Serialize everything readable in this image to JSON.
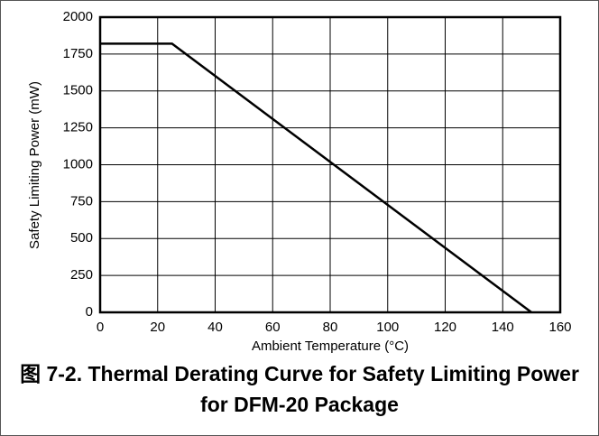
{
  "chart_data": {
    "type": "line",
    "title": "图 7-2. Thermal Derating Curve for Safety Limiting Power for DFM-20 Package",
    "xlabel": "Ambient Temperature (°C)",
    "ylabel": "Safety Limiting Power (mW)",
    "x": [
      0,
      25,
      150
    ],
    "series": [
      {
        "color": "#000000",
        "values": [
          1820,
          1820,
          0
        ]
      }
    ],
    "xlim": [
      0,
      160
    ],
    "xticks": [
      0,
      20,
      40,
      60,
      80,
      100,
      120,
      140,
      160
    ],
    "ylim": [
      0,
      2000
    ],
    "yticks": [
      0,
      250,
      500,
      750,
      1000,
      1250,
      1500,
      1750,
      2000
    ],
    "grid": true
  }
}
